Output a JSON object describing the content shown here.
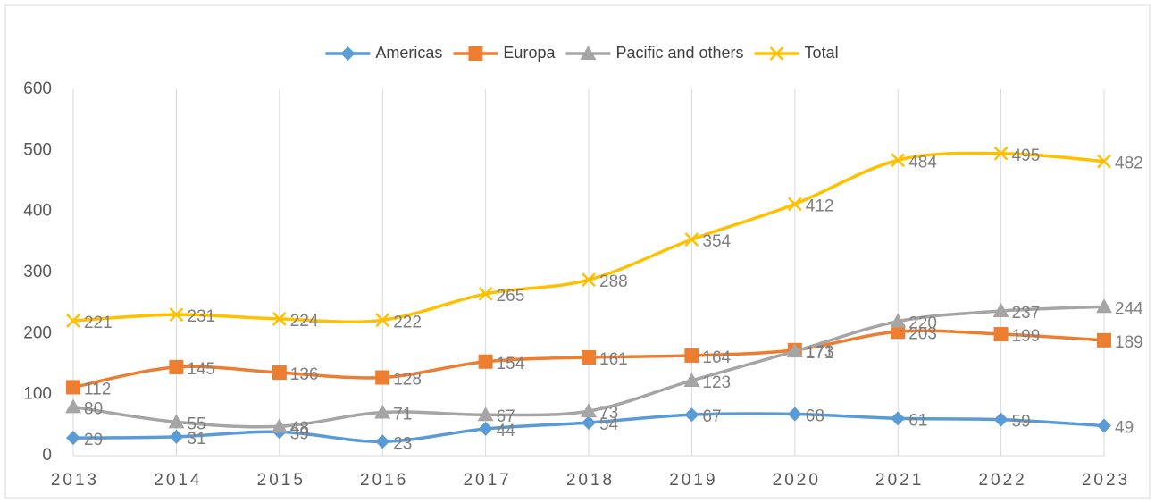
{
  "chart_data": {
    "type": "line",
    "categories": [
      "2013",
      "2014",
      "2015",
      "2016",
      "2017",
      "2018",
      "2019",
      "2020",
      "2021",
      "2022",
      "2023"
    ],
    "series": [
      {
        "name": "Americas",
        "color": "#5b9bd5",
        "marker": "diamond",
        "values": [
          29,
          31,
          39,
          23,
          44,
          54,
          67,
          68,
          61,
          59,
          49
        ]
      },
      {
        "name": "Europa",
        "color": "#ed7d31",
        "marker": "square",
        "values": [
          112,
          145,
          136,
          128,
          154,
          161,
          164,
          173,
          203,
          199,
          189
        ]
      },
      {
        "name": "Pacific and others",
        "color": "#a5a5a5",
        "marker": "triangle",
        "values": [
          80,
          55,
          48,
          71,
          67,
          73,
          123,
          171,
          220,
          237,
          244
        ]
      },
      {
        "name": "Total",
        "color": "#ffc000",
        "marker": "x",
        "values": [
          221,
          231,
          224,
          222,
          265,
          288,
          354,
          412,
          484,
          495,
          482
        ]
      }
    ],
    "ylim": [
      0,
      600
    ],
    "yticks": [
      0,
      100,
      200,
      300,
      400,
      500,
      600
    ],
    "grid": true,
    "legend": "top"
  }
}
